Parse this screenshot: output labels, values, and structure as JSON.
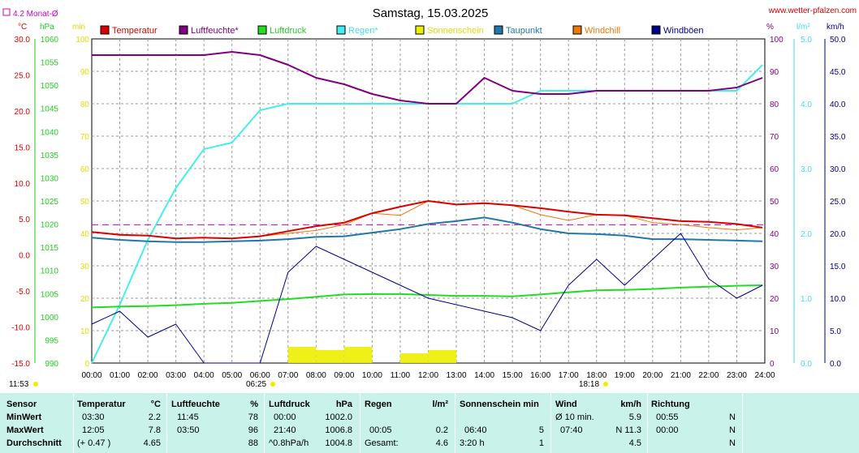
{
  "header": {
    "title": "Samstag, 15.03.2025",
    "website": "www.wetter-pfalzen.com",
    "month_avg_label": "4.2 Monat-Ø"
  },
  "axes": {
    "left_units": [
      "°C",
      "hPa",
      "min"
    ],
    "right_units": [
      "%",
      "l/m²",
      "km/h"
    ],
    "temp_ticks": [
      "30.0",
      "25.0",
      "20.0",
      "15.0",
      "10.0",
      "5.0",
      "0.0",
      "-5.0",
      "-10.0",
      "-15.0"
    ],
    "pressure_ticks": [
      "1060",
      "1055",
      "1050",
      "1045",
      "1040",
      "1035",
      "1030",
      "1025",
      "1020",
      "1015",
      "1010",
      "1005",
      "1000",
      "995",
      "990"
    ],
    "minutes_ticks": [
      "100",
      "90",
      "80",
      "70",
      "60",
      "50",
      "40",
      "30",
      "20",
      "10",
      "0"
    ],
    "humidity_ticks": [
      "100",
      "90",
      "80",
      "70",
      "60",
      "50",
      "40",
      "30",
      "20",
      "10",
      "0"
    ],
    "rain_ticks": [
      "5.0",
      "4.0",
      "3.0",
      "2.0",
      "1.0",
      "0.0"
    ],
    "wind_ticks": [
      "50.0",
      "45.0",
      "40.0",
      "35.0",
      "30.0",
      "25.0",
      "20.0",
      "15.0",
      "10.0",
      "5.0",
      "0.0"
    ],
    "time_ticks": [
      "00:00",
      "01:00",
      "02:00",
      "03:00",
      "04:00",
      "05:00",
      "06:00",
      "07:00",
      "08:00",
      "09:00",
      "10:00",
      "11:00",
      "12:00",
      "13:00",
      "14:00",
      "15:00",
      "16:00",
      "17:00",
      "18:00",
      "19:00",
      "20:00",
      "21:00",
      "22:00",
      "23:00",
      "24:00"
    ]
  },
  "markers": {
    "moonrise": "11:53",
    "sunrise": "06:25",
    "sunset": "18:18"
  },
  "colors": {
    "temperature": "#dd0000",
    "humidity": "#800080",
    "pressure": "#22dd22",
    "rain": "#44eeee",
    "sunshine": "#eeee00",
    "dewpoint": "#2277aa",
    "windchill": "#ee7700",
    "gusts": "#000088",
    "month_avg": "#cc00cc",
    "stats_bg": "#c9f3ea"
  },
  "chart_data": {
    "type": "line",
    "title": "Samstag, 15.03.2025",
    "x_unit": "time of day",
    "xlim": [
      "00:00",
      "24:00"
    ],
    "ylim_temperature": [
      -15,
      30
    ],
    "ylim_pressure": [
      990,
      1060
    ],
    "ylim_minutes": [
      0,
      100
    ],
    "ylim_humidity": [
      0,
      100
    ],
    "ylim_rain": [
      0,
      5
    ],
    "ylim_wind": [
      0,
      50
    ],
    "grid": true,
    "legend": "top",
    "month_avg_temperature": 4.2,
    "x": [
      "00:00",
      "01:00",
      "02:00",
      "03:00",
      "04:00",
      "05:00",
      "06:00",
      "07:00",
      "08:00",
      "09:00",
      "10:00",
      "11:00",
      "12:00",
      "13:00",
      "14:00",
      "15:00",
      "16:00",
      "17:00",
      "18:00",
      "19:00",
      "20:00",
      "21:00",
      "22:00",
      "23:00",
      "23:55"
    ],
    "series": [
      {
        "name": "Temperatur",
        "axis": "temperature",
        "values": [
          3.2,
          2.8,
          2.7,
          2.3,
          2.4,
          2.3,
          2.6,
          3.3,
          4.0,
          4.5,
          5.8,
          6.7,
          7.5,
          7.0,
          7.2,
          6.9,
          6.5,
          6.0,
          5.6,
          5.5,
          5.1,
          4.7,
          4.6,
          4.3,
          3.8
        ]
      },
      {
        "name": "Luftfeuchte*",
        "axis": "humidity",
        "values": [
          95,
          95,
          95,
          95,
          95,
          96,
          95,
          92,
          88,
          86,
          83,
          81,
          80,
          80,
          88,
          84,
          83,
          83,
          84,
          84,
          84,
          84,
          84,
          85,
          88
        ]
      },
      {
        "name": "Luftdruck",
        "axis": "pressure",
        "values": [
          1002.0,
          1002.2,
          1002.3,
          1002.5,
          1002.8,
          1003.0,
          1003.4,
          1003.8,
          1004.3,
          1004.8,
          1004.9,
          1004.9,
          1004.7,
          1004.5,
          1004.5,
          1004.4,
          1004.8,
          1005.3,
          1005.7,
          1005.8,
          1006.0,
          1006.3,
          1006.5,
          1006.7,
          1006.8
        ]
      },
      {
        "name": "Regen*",
        "axis": "rain",
        "values": [
          0.0,
          0.9,
          1.9,
          2.7,
          3.3,
          3.4,
          3.9,
          4.0,
          4.0,
          4.0,
          4.0,
          4.0,
          4.0,
          4.0,
          4.0,
          4.0,
          4.2,
          4.2,
          4.2,
          4.2,
          4.2,
          4.2,
          4.2,
          4.2,
          4.6
        ]
      },
      {
        "name": "Sonnenschein",
        "axis": "minutes",
        "values": [
          0,
          0,
          0,
          0,
          0,
          0,
          0,
          5,
          4,
          5,
          0,
          3,
          4,
          0,
          0,
          0,
          0,
          0,
          0,
          0,
          0,
          0,
          0,
          0,
          0
        ]
      },
      {
        "name": "Taupunkt",
        "axis": "temperature",
        "values": [
          2.4,
          2.1,
          1.9,
          1.8,
          1.8,
          1.9,
          2.0,
          2.2,
          2.5,
          2.6,
          3.1,
          3.6,
          4.3,
          4.7,
          5.2,
          4.5,
          3.6,
          3.0,
          2.9,
          2.7,
          2.2,
          2.2,
          2.1,
          2.0,
          1.9
        ]
      },
      {
        "name": "Windchill",
        "axis": "temperature",
        "values": [
          3.2,
          2.8,
          2.7,
          2.3,
          2.4,
          2.3,
          2.6,
          3.0,
          3.4,
          4.2,
          5.8,
          5.5,
          7.5,
          7.0,
          7.2,
          6.9,
          5.6,
          4.8,
          5.6,
          5.5,
          4.5,
          4.2,
          3.8,
          3.5,
          3.8
        ]
      },
      {
        "name": "Windböen",
        "axis": "wind",
        "values": [
          6,
          8,
          4,
          6,
          0,
          0,
          0,
          14,
          18,
          16,
          14,
          12,
          10,
          9,
          8,
          7,
          5,
          12,
          16,
          12,
          16,
          20,
          13,
          10,
          12
        ]
      }
    ]
  },
  "stats": {
    "headers": {
      "sensor": "Sensor",
      "temp": "Temperatur",
      "temp_unit": "°C",
      "hum": "Luftfeuchte",
      "hum_unit": "%",
      "press": "Luftdruck",
      "press_unit": "hPa",
      "rain": "Regen",
      "rain_unit": "l/m²",
      "sun": "Sonnenschein min",
      "wind": "Wind",
      "wind_unit": "km/h",
      "dir": "Richtung"
    },
    "rows": [
      {
        "label": "MinWert",
        "temp_time": "03:30",
        "temp_val": "2.2",
        "hum_time": "11:45",
        "hum_val": "78",
        "press_time": "00:00",
        "press_val": "1002.0",
        "rain_time": "",
        "rain_val": "",
        "sun_time": "",
        "sun_val": "",
        "wind_time": "Ø 10 min.",
        "wind_val": "5.9",
        "dir_time": "00:55",
        "dir_val": "N"
      },
      {
        "label": "MaxWert",
        "temp_time": "12:05",
        "temp_val": "7.8",
        "hum_time": "03:50",
        "hum_val": "96",
        "press_time": "21:40",
        "press_val": "1006.8",
        "rain_time": "00:05",
        "rain_val": "0.2",
        "sun_time": "06:40",
        "sun_val": "5",
        "wind_time": "07:40",
        "wind_val": "N 11.3",
        "dir_time": "00:00",
        "dir_val": "N"
      },
      {
        "label": "Durchschnitt",
        "temp_time": "(+ 0.47 )",
        "temp_val": "4.65",
        "hum_time": "",
        "hum_val": "88",
        "press_time": "^0.8hPa/h",
        "press_val": "1004.8",
        "rain_time": "Gesamt:",
        "rain_val": "4.6",
        "sun_time": "3:20 h",
        "sun_val": "1",
        "wind_time": "",
        "wind_val": "4.5",
        "dir_time": "",
        "dir_val": "N"
      }
    ]
  }
}
